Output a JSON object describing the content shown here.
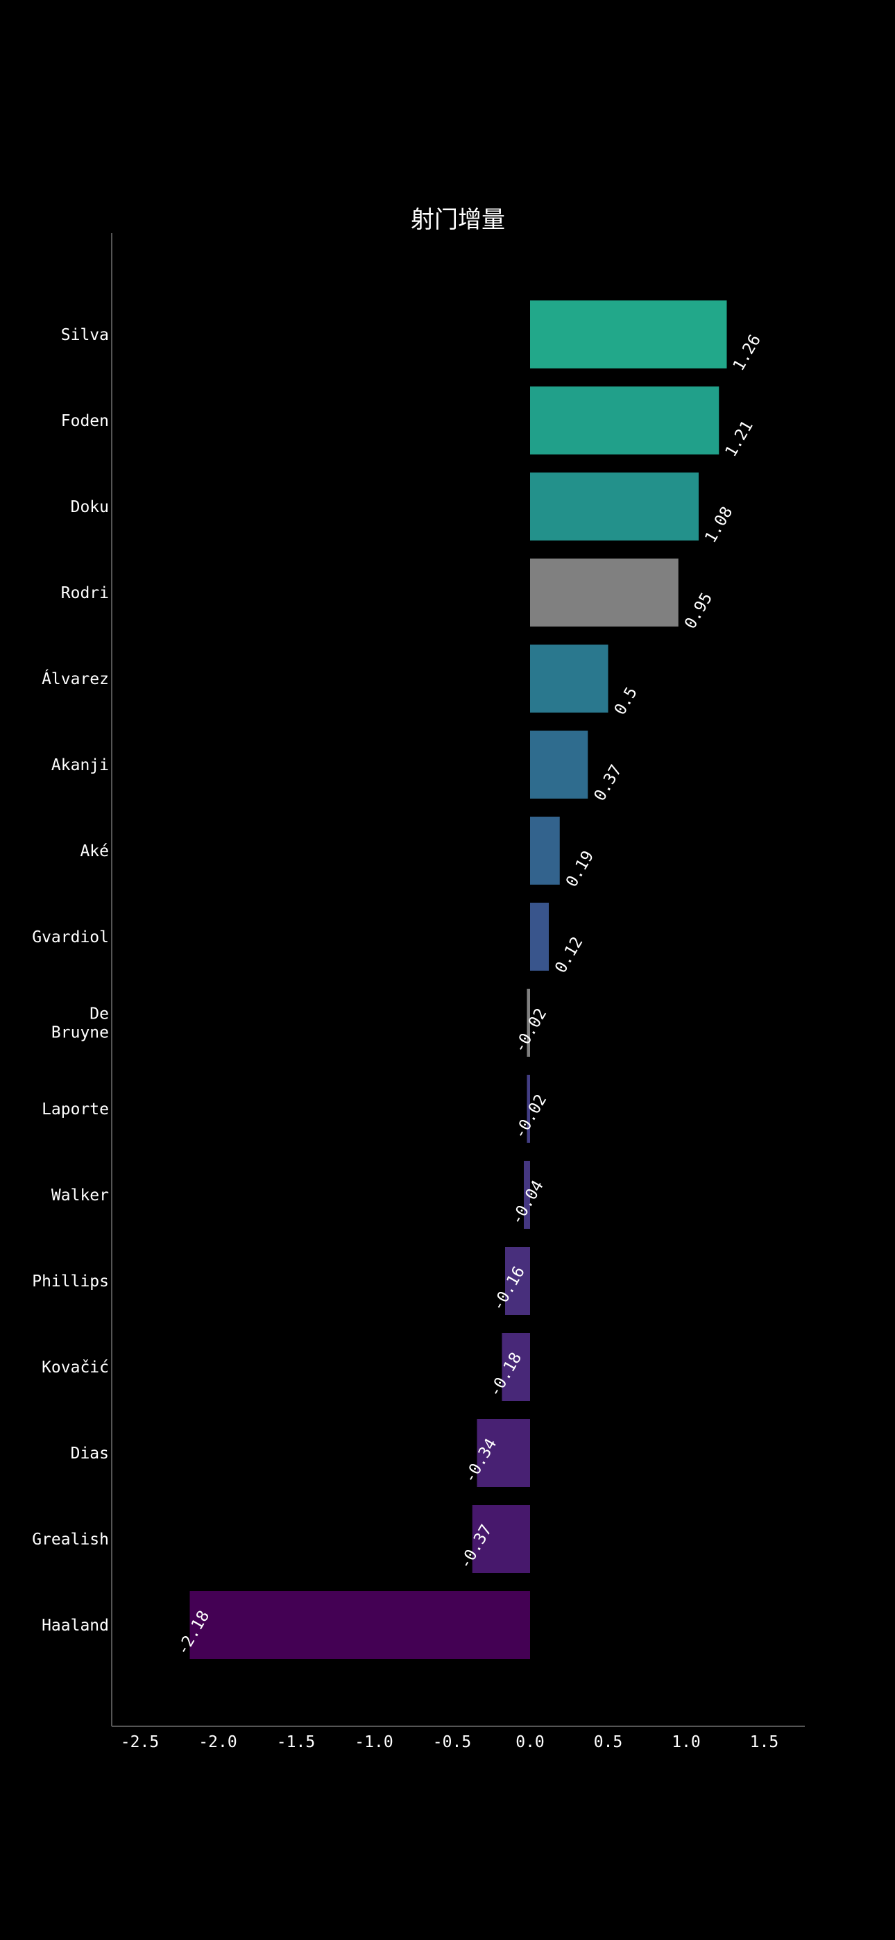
{
  "chart_data": {
    "type": "bar",
    "orientation": "horizontal",
    "title": "射门增量",
    "xlabel": "",
    "ylabel": "",
    "xlim": [
      -2.7,
      1.75
    ],
    "x_ticks": [
      "-2.5",
      "-2.0",
      "-1.5",
      "-1.0",
      "-0.5",
      "0.0",
      "0.5",
      "1.0",
      "1.5"
    ],
    "x_tick_values": [
      -2.5,
      -2.0,
      -1.5,
      -1.0,
      -0.5,
      0.0,
      0.5,
      1.0,
      1.5
    ],
    "grid": false,
    "categories": [
      "Silva",
      "Foden",
      "Doku",
      "Rodri",
      "Álvarez",
      "Akanji",
      "Aké",
      "Gvardiol",
      "De Bruyne",
      "Laporte",
      "Walker",
      "Phillips",
      "Kovačić",
      "Dias",
      "Grealish",
      "Haaland"
    ],
    "values": [
      1.26,
      1.21,
      1.08,
      0.95,
      0.5,
      0.37,
      0.19,
      0.12,
      -0.02,
      -0.02,
      -0.04,
      -0.16,
      -0.18,
      -0.34,
      -0.37,
      -2.18
    ],
    "data_labels": [
      "1.26",
      "1.21",
      "1.08",
      "0.95",
      "0.5",
      "0.37",
      "0.19",
      "0.12",
      "-0.02",
      "-0.02",
      "-0.04",
      "-0.16",
      "-0.18",
      "-0.34",
      "-0.37",
      "-2.18"
    ],
    "colors": [
      "#22a88a",
      "#21a08a",
      "#23918b",
      "#808080",
      "#2a788e",
      "#2f6c8e",
      "#33638d",
      "#39558c",
      "#808080",
      "#433e85",
      "#453781",
      "#482f7c",
      "#482878",
      "#482173",
      "#47186c",
      "#440154"
    ]
  }
}
